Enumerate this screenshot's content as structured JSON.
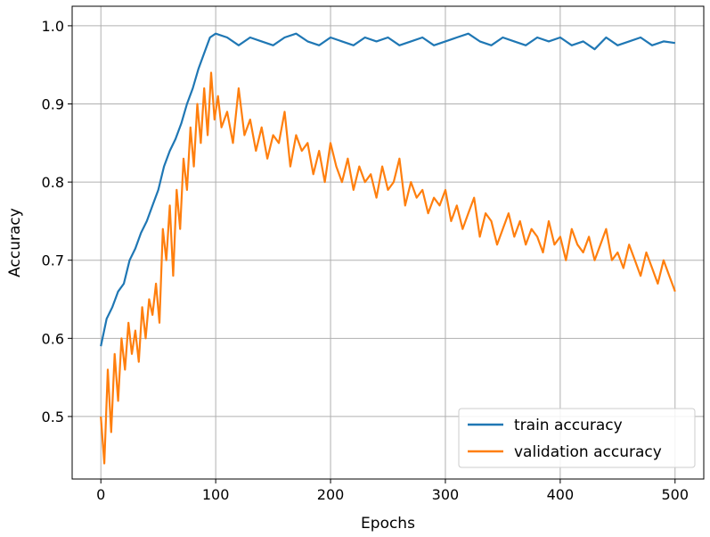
{
  "chart_data": {
    "type": "line",
    "title": "",
    "xlabel": "Epochs",
    "ylabel": "Accuracy",
    "xlim": [
      -25,
      525
    ],
    "ylim": [
      0.42,
      1.025
    ],
    "xticks": [
      0,
      100,
      200,
      300,
      400,
      500
    ],
    "yticks": [
      0.5,
      0.6,
      0.7,
      0.8,
      0.9,
      1.0
    ],
    "xtick_labels": [
      "0",
      "100",
      "200",
      "300",
      "400",
      "500"
    ],
    "ytick_labels": [
      "0.5",
      "0.6",
      "0.7",
      "0.8",
      "0.9",
      "1.0"
    ],
    "grid": true,
    "legend_position": "lower right",
    "series": [
      {
        "name": "train accuracy",
        "color": "#1f77b4",
        "x": [
          0,
          5,
          10,
          15,
          20,
          25,
          30,
          35,
          40,
          45,
          50,
          55,
          60,
          65,
          70,
          75,
          80,
          85,
          90,
          95,
          100,
          110,
          120,
          130,
          140,
          150,
          160,
          170,
          180,
          190,
          200,
          210,
          220,
          230,
          240,
          250,
          260,
          270,
          280,
          290,
          300,
          310,
          320,
          330,
          340,
          350,
          360,
          370,
          380,
          390,
          400,
          410,
          420,
          430,
          440,
          450,
          460,
          470,
          480,
          490,
          500
        ],
        "values": [
          0.59,
          0.625,
          0.64,
          0.66,
          0.67,
          0.7,
          0.715,
          0.735,
          0.75,
          0.77,
          0.79,
          0.82,
          0.84,
          0.855,
          0.875,
          0.9,
          0.92,
          0.945,
          0.965,
          0.985,
          0.99,
          0.985,
          0.975,
          0.985,
          0.98,
          0.975,
          0.985,
          0.99,
          0.98,
          0.975,
          0.985,
          0.98,
          0.975,
          0.985,
          0.98,
          0.985,
          0.975,
          0.98,
          0.985,
          0.975,
          0.98,
          0.985,
          0.99,
          0.98,
          0.975,
          0.985,
          0.98,
          0.975,
          0.985,
          0.98,
          0.985,
          0.975,
          0.98,
          0.97,
          0.985,
          0.975,
          0.98,
          0.985,
          0.975,
          0.98,
          0.978
        ]
      },
      {
        "name": "validation accuracy",
        "color": "#ff7f0e",
        "x": [
          0,
          3,
          6,
          9,
          12,
          15,
          18,
          21,
          24,
          27,
          30,
          33,
          36,
          39,
          42,
          45,
          48,
          51,
          54,
          57,
          60,
          63,
          66,
          69,
          72,
          75,
          78,
          81,
          84,
          87,
          90,
          93,
          96,
          99,
          102,
          105,
          110,
          115,
          120,
          125,
          130,
          135,
          140,
          145,
          150,
          155,
          160,
          165,
          170,
          175,
          180,
          185,
          190,
          195,
          200,
          205,
          210,
          215,
          220,
          225,
          230,
          235,
          240,
          245,
          250,
          255,
          260,
          265,
          270,
          275,
          280,
          285,
          290,
          295,
          300,
          305,
          310,
          315,
          320,
          325,
          330,
          335,
          340,
          345,
          350,
          355,
          360,
          365,
          370,
          375,
          380,
          385,
          390,
          395,
          400,
          405,
          410,
          415,
          420,
          425,
          430,
          435,
          440,
          445,
          450,
          455,
          460,
          465,
          470,
          475,
          480,
          485,
          490,
          495,
          500
        ],
        "values": [
          0.5,
          0.44,
          0.56,
          0.48,
          0.58,
          0.52,
          0.6,
          0.56,
          0.62,
          0.58,
          0.61,
          0.57,
          0.64,
          0.6,
          0.65,
          0.63,
          0.67,
          0.62,
          0.74,
          0.7,
          0.77,
          0.68,
          0.79,
          0.74,
          0.83,
          0.79,
          0.87,
          0.82,
          0.9,
          0.85,
          0.92,
          0.86,
          0.94,
          0.88,
          0.91,
          0.87,
          0.89,
          0.85,
          0.92,
          0.86,
          0.88,
          0.84,
          0.87,
          0.83,
          0.86,
          0.85,
          0.89,
          0.82,
          0.86,
          0.84,
          0.85,
          0.81,
          0.84,
          0.8,
          0.85,
          0.82,
          0.8,
          0.83,
          0.79,
          0.82,
          0.8,
          0.81,
          0.78,
          0.82,
          0.79,
          0.8,
          0.83,
          0.77,
          0.8,
          0.78,
          0.79,
          0.76,
          0.78,
          0.77,
          0.79,
          0.75,
          0.77,
          0.74,
          0.76,
          0.78,
          0.73,
          0.76,
          0.75,
          0.72,
          0.74,
          0.76,
          0.73,
          0.75,
          0.72,
          0.74,
          0.73,
          0.71,
          0.75,
          0.72,
          0.73,
          0.7,
          0.74,
          0.72,
          0.71,
          0.73,
          0.7,
          0.72,
          0.74,
          0.7,
          0.71,
          0.69,
          0.72,
          0.7,
          0.68,
          0.71,
          0.69,
          0.67,
          0.7,
          0.68,
          0.66
        ]
      }
    ]
  }
}
